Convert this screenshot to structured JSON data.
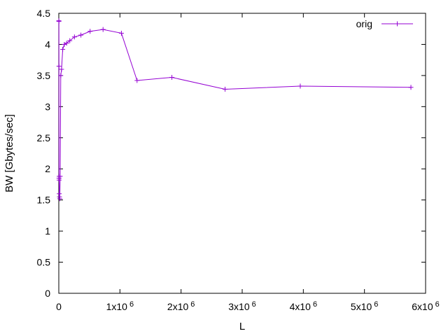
{
  "chart_data": {
    "type": "line",
    "title": "",
    "xlabel": "L",
    "ylabel": "BW [Gbytes/sec]",
    "xlim": [
      0,
      6000000
    ],
    "ylim": [
      0,
      4.5
    ],
    "grid": false,
    "legend_position": "top-right",
    "x_ticks": [
      {
        "value": 0,
        "base": "0",
        "exp": ""
      },
      {
        "value": 1000000,
        "base": "1x10",
        "exp": "6"
      },
      {
        "value": 2000000,
        "base": "2x10",
        "exp": "6"
      },
      {
        "value": 3000000,
        "base": "3x10",
        "exp": "6"
      },
      {
        "value": 4000000,
        "base": "4x10",
        "exp": "6"
      },
      {
        "value": 5000000,
        "base": "5x10",
        "exp": "6"
      },
      {
        "value": 6000000,
        "base": "6x10",
        "exp": "6"
      }
    ],
    "y_ticks": [
      {
        "value": 0,
        "label": "0"
      },
      {
        "value": 0.5,
        "label": "0.5"
      },
      {
        "value": 1,
        "label": "1"
      },
      {
        "value": 1.5,
        "label": "1.5"
      },
      {
        "value": 2,
        "label": "2"
      },
      {
        "value": 2.5,
        "label": "2.5"
      },
      {
        "value": 3,
        "label": "3"
      },
      {
        "value": 3.5,
        "label": "3.5"
      },
      {
        "value": 4,
        "label": "4"
      },
      {
        "value": 4.5,
        "label": "4.5"
      }
    ],
    "series": [
      {
        "name": "orig",
        "color": "#9400d3",
        "marker": "plus",
        "points": [
          [
            1000,
            4.38
          ],
          [
            2000,
            4.37
          ],
          [
            3000,
            3.65
          ],
          [
            4000,
            1.85
          ],
          [
            5000,
            1.82
          ],
          [
            6000,
            1.88
          ],
          [
            8000,
            1.6
          ],
          [
            11000,
            1.55
          ],
          [
            16000,
            1.52
          ],
          [
            23000,
            1.88
          ],
          [
            32000,
            3.5
          ],
          [
            45000,
            3.6
          ],
          [
            64000,
            3.92
          ],
          [
            90000,
            4.0
          ],
          [
            128000,
            4.02
          ],
          [
            180000,
            4.06
          ],
          [
            256000,
            4.12
          ],
          [
            362000,
            4.15
          ],
          [
            512000,
            4.21
          ],
          [
            724000,
            4.24
          ],
          [
            1024000,
            4.18
          ],
          [
            1280000,
            3.42
          ],
          [
            1850000,
            3.47
          ],
          [
            2720000,
            3.28
          ],
          [
            3950000,
            3.33
          ],
          [
            5760000,
            3.31
          ]
        ]
      }
    ]
  }
}
